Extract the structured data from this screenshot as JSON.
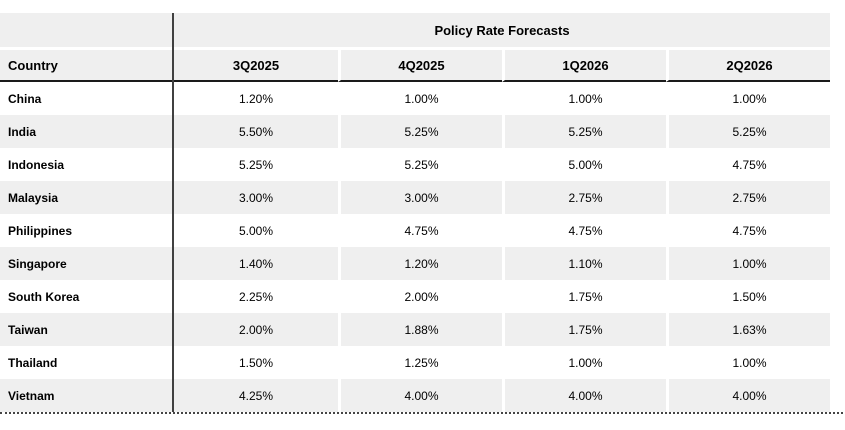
{
  "table": {
    "title": "Policy Rate Forecasts",
    "country_header": "Country",
    "quarter_headers": [
      "3Q2025",
      "4Q2025",
      "1Q2026",
      "2Q2026"
    ],
    "rows": [
      {
        "country": "China",
        "values": [
          "1.20%",
          "1.00%",
          "1.00%",
          "1.00%"
        ]
      },
      {
        "country": "India",
        "values": [
          "5.50%",
          "5.25%",
          "5.25%",
          "5.25%"
        ]
      },
      {
        "country": "Indonesia",
        "values": [
          "5.25%",
          "5.25%",
          "5.00%",
          "4.75%"
        ]
      },
      {
        "country": "Malaysia",
        "values": [
          "3.00%",
          "3.00%",
          "2.75%",
          "2.75%"
        ]
      },
      {
        "country": "Philippines",
        "values": [
          "5.00%",
          "4.75%",
          "4.75%",
          "4.75%"
        ]
      },
      {
        "country": "Singapore",
        "values": [
          "1.40%",
          "1.20%",
          "1.10%",
          "1.00%"
        ]
      },
      {
        "country": "South Korea",
        "values": [
          "2.25%",
          "2.00%",
          "1.75%",
          "1.50%"
        ]
      },
      {
        "country": "Taiwan",
        "values": [
          "2.00%",
          "1.88%",
          "1.75%",
          "1.63%"
        ]
      },
      {
        "country": "Thailand",
        "values": [
          "1.50%",
          "1.25%",
          "1.00%",
          "1.00%"
        ]
      },
      {
        "country": "Vietnam",
        "values": [
          "4.25%",
          "4.00%",
          "4.00%",
          "4.00%"
        ]
      }
    ],
    "colors": {
      "stripe": "#EFEFEF",
      "column_divider": "#404040",
      "header_underline": "#1A1A1A",
      "dotted_border": "#444444",
      "text": "#000000"
    }
  },
  "chart_data": {
    "type": "table",
    "title": "Policy Rate Forecasts",
    "columns": [
      "Country",
      "3Q2025",
      "4Q2025",
      "1Q2026",
      "2Q2026"
    ],
    "unit": "percent",
    "rows": [
      [
        "China",
        1.2,
        1.0,
        1.0,
        1.0
      ],
      [
        "India",
        5.5,
        5.25,
        5.25,
        5.25
      ],
      [
        "Indonesia",
        5.25,
        5.25,
        5.0,
        4.75
      ],
      [
        "Malaysia",
        3.0,
        3.0,
        2.75,
        2.75
      ],
      [
        "Philippines",
        5.0,
        4.75,
        4.75,
        4.75
      ],
      [
        "Singapore",
        1.4,
        1.2,
        1.1,
        1.0
      ],
      [
        "South Korea",
        2.25,
        2.0,
        1.75,
        1.5
      ],
      [
        "Taiwan",
        2.0,
        1.88,
        1.75,
        1.63
      ],
      [
        "Thailand",
        1.5,
        1.25,
        1.0,
        1.0
      ],
      [
        "Vietnam",
        4.25,
        4.0,
        4.0,
        4.0
      ]
    ]
  }
}
